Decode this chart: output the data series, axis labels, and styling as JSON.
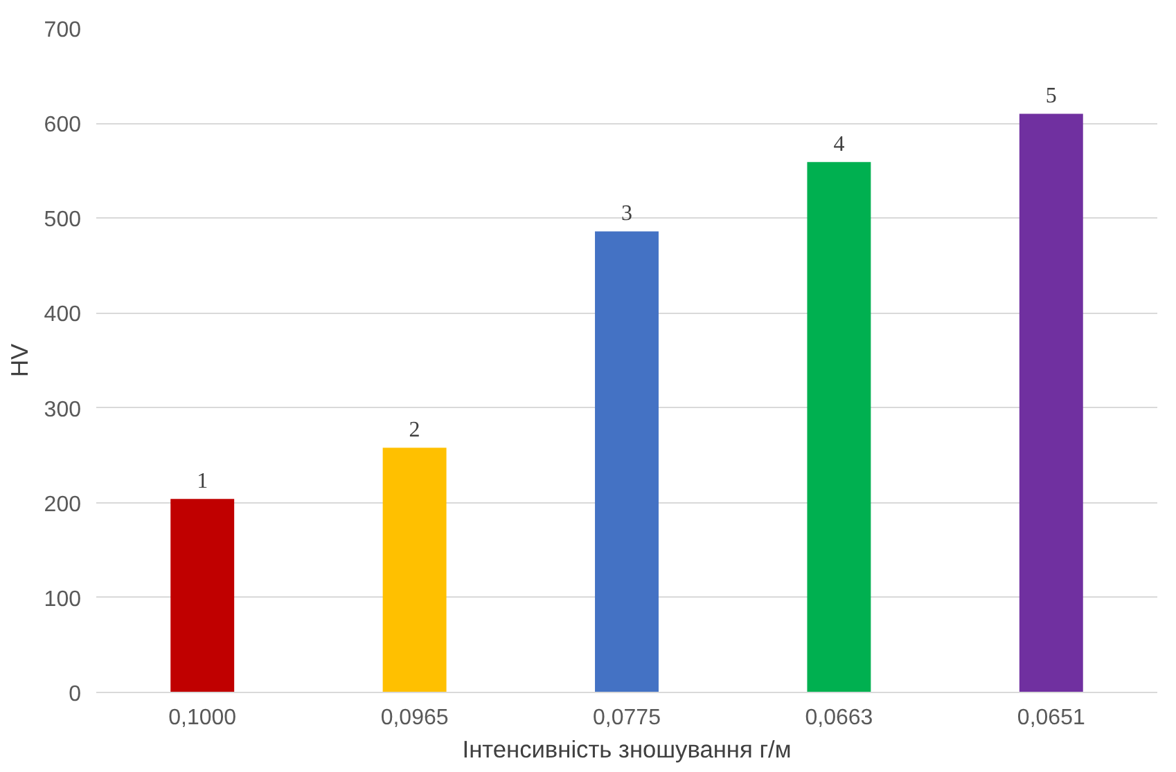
{
  "chart_data": {
    "type": "bar",
    "xlabel": "Інтенсивність зношування г/м",
    "ylabel": "HV",
    "categories": [
      "0,1000",
      "0,0965",
      "0,0775",
      "0,0663",
      "0,0651"
    ],
    "values": [
      204,
      258,
      486,
      559,
      610
    ],
    "colors": [
      "#c00000",
      "#ffc000",
      "#4472c4",
      "#00b050",
      "#7030a0"
    ],
    "ylim": [
      0,
      700
    ],
    "yticks": [
      0,
      100,
      200,
      300,
      400,
      500,
      600,
      700
    ],
    "grid": "y",
    "annotations": [
      {
        "text": "1",
        "x": "0,1000",
        "y": 204
      },
      {
        "text": "2",
        "x": "0,0965",
        "y": 258
      },
      {
        "text": "3",
        "x": "0,0775",
        "y": 486
      },
      {
        "text": "4",
        "x": "0,0663",
        "y": 559
      },
      {
        "text": "5",
        "x": "0,0651",
        "y": 610
      }
    ]
  }
}
